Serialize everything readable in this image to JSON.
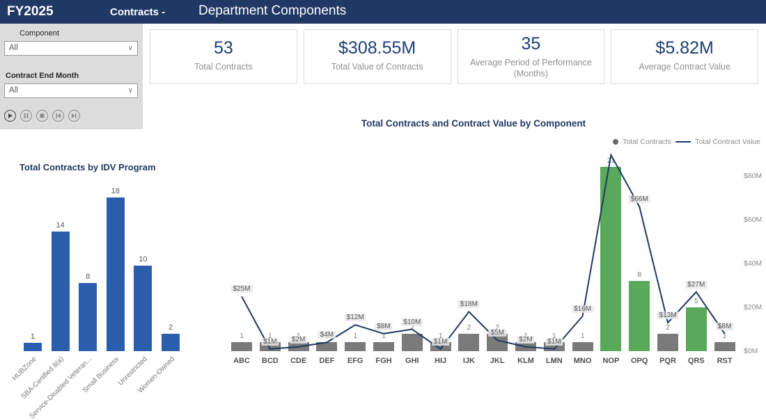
{
  "header": {
    "fiscal_year": "FY2025",
    "app_title": "Contracts -",
    "page_title": "Department Components"
  },
  "filters": {
    "component": {
      "label": "Component",
      "value": "All"
    },
    "end_month": {
      "label": "Contract End Month",
      "value": "All"
    },
    "player_buttons": [
      "play",
      "pause",
      "stop",
      "skip-back",
      "skip-forward"
    ]
  },
  "kpis": [
    {
      "value": "53",
      "label": "Total Contracts"
    },
    {
      "value": "$308.55M",
      "label": "Total Value of Contracts"
    },
    {
      "value": "35",
      "label": "Average Period of Performance (Months)"
    },
    {
      "value": "$5.82M",
      "label": "Average Contract Value"
    }
  ],
  "chart_data": [
    {
      "type": "bar",
      "title": "Total Contracts by IDV Program",
      "categories": [
        "HUBZone",
        "SBA-Certified 8(a)",
        "Service-Disabled Veteran...",
        "Small Business",
        "Unrestricted",
        "Women-Owned"
      ],
      "values": [
        1,
        14,
        8,
        18,
        10,
        2
      ],
      "ylim": [
        0,
        18
      ],
      "grid": false,
      "legend": "none"
    },
    {
      "type": "combo",
      "title": "Total Contracts and Contract Value by Component",
      "categories": [
        "ABC",
        "BCD",
        "CDE",
        "DEF",
        "EFG",
        "FGH",
        "GHI",
        "HIJ",
        "IJK",
        "JKL",
        "KLM",
        "LMN",
        "MNO",
        "NOP",
        "OPQ",
        "PQR",
        "QRS",
        "RST"
      ],
      "series": [
        {
          "name": "Total Contracts",
          "type": "bar",
          "values": [
            1,
            1,
            1,
            1,
            1,
            1,
            2,
            1,
            2,
            2,
            1,
            1,
            1,
            21,
            8,
            2,
            5,
            1
          ]
        },
        {
          "name": "Total Contract Value",
          "type": "line",
          "values": [
            25,
            1,
            2,
            4,
            12,
            8,
            10,
            1,
            18,
            5,
            2,
            1,
            16,
            89.55,
            66,
            13,
            27,
            8
          ],
          "labels": [
            "$25M",
            "$1M",
            "$2M",
            "$4M",
            "$12M",
            "$8M",
            "$10M",
            "$1M",
            "$18M",
            "$5M",
            "$2M",
            "$1M",
            "$16M",
            "",
            "$66M",
            "$13M",
            "$27M",
            "$8M"
          ]
        }
      ],
      "green_indices": [
        13,
        14,
        16
      ],
      "value_axis": {
        "ticks": [
          "$0M",
          "$20M",
          "$40M",
          "$60M",
          "$80M"
        ],
        "tick_values": [
          0,
          20,
          40,
          60,
          80
        ],
        "max": 90,
        "position": "right"
      },
      "legend_position": "top-right",
      "grid": false
    }
  ],
  "colors": {
    "header_navy": "#1f3864",
    "title_navy": "#1f3864",
    "kpi_value": "#1c3e73",
    "bar_blue": "#2b5dad",
    "bar_gray": "#7a7a7a",
    "bar_green": "#5aa85a",
    "line_navy": "#1f3864",
    "label_gray": "#8f8f8f"
  }
}
